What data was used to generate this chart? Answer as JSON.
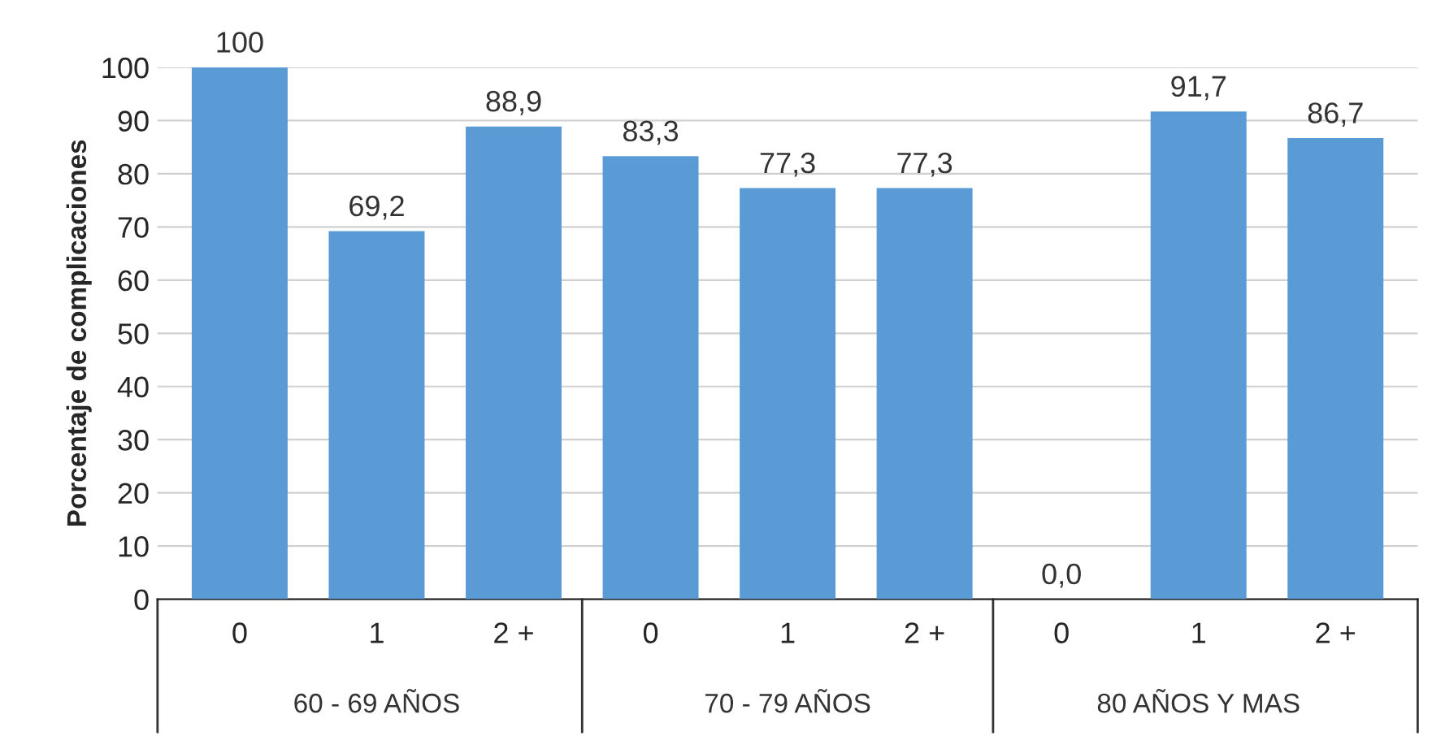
{
  "chart_data": {
    "type": "bar",
    "ylabel": "Porcentaje de complicaciones",
    "categories": [
      "0",
      "1",
      "2 +",
      "0",
      "1",
      "2 +",
      "0",
      "1",
      "2 +"
    ],
    "values": [
      100,
      69.2,
      88.9,
      83.3,
      77.3,
      77.3,
      0.0,
      91.7,
      86.7
    ],
    "value_labels": [
      "100",
      "69,2",
      "88,9",
      "83,3",
      "77,3",
      "77,3",
      "0,0",
      "91,7",
      "86,7"
    ],
    "color": "#5b9bd5",
    "annotations": [
      "60 - 69 AÑOS",
      "70 - 79 AÑOS",
      "80 AÑOS Y MAS"
    ],
    "ylim": [
      0,
      100
    ],
    "yticks": [
      0,
      10,
      20,
      30,
      40,
      50,
      60,
      70,
      80,
      90,
      100
    ],
    "grid": "y"
  }
}
